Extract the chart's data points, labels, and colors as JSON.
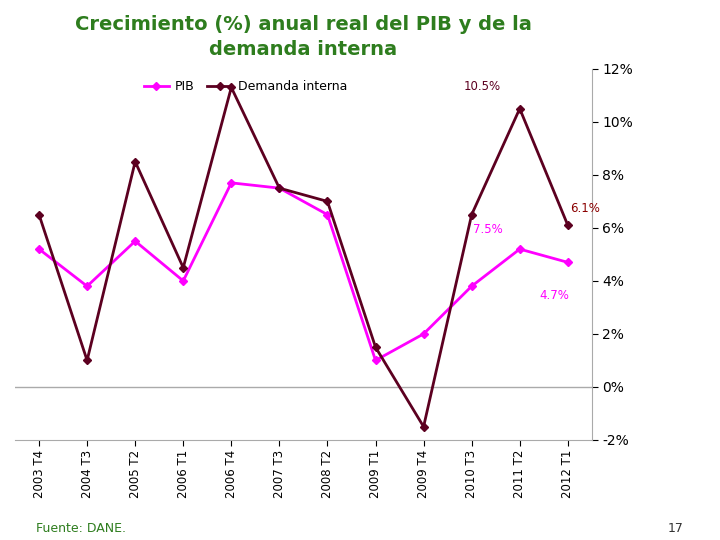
{
  "title_line1": "Crecimiento (%) anual real del PIB y de la",
  "title_line2": "demanda interna",
  "title_color": "#2E7D1E",
  "x_labels": [
    "2003 T4",
    "2004 T3",
    "2005 T2",
    "2006 T1",
    "2006 T4",
    "2007 T3",
    "2008 T2",
    "2009 T1",
    "2009 T4",
    "2010 T3",
    "2011 T2",
    "2012 T1"
  ],
  "pib_values": [
    5.2,
    3.8,
    5.5,
    4.0,
    7.7,
    7.5,
    6.5,
    1.0,
    2.0,
    3.8,
    5.2,
    4.7
  ],
  "demanda_values": [
    6.5,
    1.0,
    8.5,
    4.5,
    11.3,
    7.5,
    7.0,
    1.5,
    -1.5,
    6.5,
    10.5,
    6.1
  ],
  "pib_color": "#FF00FF",
  "demanda_color": "#5C0020",
  "fuente_text": "Fuente: DANE.",
  "fuente_color": "#2E7D1E",
  "page_num": "17",
  "page_color": "#333333",
  "ann_105_text": "10.5%",
  "ann_75_text": "7.5%",
  "ann_61_text": "6.1%",
  "ann_47_text": "4.7%",
  "ann_color_demanda": "#5C0020",
  "ann_color_pib": "#FF00FF",
  "ann_color_61": "#8B0000",
  "ylim": [
    -2,
    12
  ],
  "yticks": [
    -2,
    0,
    2,
    4,
    6,
    8,
    10,
    12
  ],
  "legend_pib": "PIB",
  "legend_demanda": "Demanda interna",
  "marker": "D",
  "line_width": 2.0,
  "marker_size": 4
}
